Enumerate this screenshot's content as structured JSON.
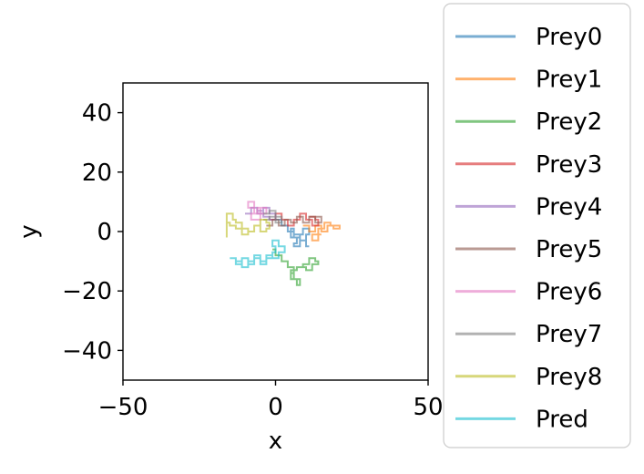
{
  "chart_data": {
    "type": "line",
    "title": "",
    "xlabel": "x",
    "ylabel": "y",
    "xlim": [
      -50,
      50
    ],
    "ylim": [
      -50,
      50
    ],
    "xticks": [
      -50,
      0,
      50
    ],
    "xtick_labels": [
      "−50",
      "0",
      "50"
    ],
    "yticks": [
      -40,
      -20,
      0,
      20,
      40
    ],
    "ytick_labels": [
      "−40",
      "−20",
      "0",
      "20",
      "40"
    ],
    "grid": false,
    "legend_position": "right",
    "series": [
      {
        "name": "Prey0",
        "color": "#1f77b4",
        "x": [
          0,
          2,
          2,
          4,
          4,
          6,
          6,
          8,
          8,
          9,
          9,
          11,
          11,
          10,
          10,
          8,
          8,
          6,
          6,
          5,
          5,
          7,
          7,
          6,
          6,
          8,
          8,
          10,
          10,
          11
        ],
        "y": [
          4,
          4,
          2,
          2,
          0,
          0,
          -2,
          -2,
          -1,
          -1,
          1,
          1,
          -1,
          -1,
          -3,
          -3,
          -1,
          -1,
          1,
          1,
          -2,
          -2,
          -4,
          -4,
          -5,
          -5,
          -3,
          -3,
          -5,
          -5
        ]
      },
      {
        "name": "Prey1",
        "color": "#ff7f0e",
        "x": [
          9,
          11,
          11,
          13,
          13,
          15,
          15,
          17,
          17,
          19,
          19,
          21,
          21,
          18,
          18,
          16,
          16,
          14,
          14,
          12,
          12,
          14,
          14,
          15
        ],
        "y": [
          2,
          2,
          0,
          0,
          2,
          2,
          0,
          0,
          2,
          2,
          1,
          1,
          2,
          2,
          3,
          3,
          1,
          1,
          -1,
          -1,
          -3,
          -3,
          -1,
          -1
        ]
      },
      {
        "name": "Prey2",
        "color": "#2ca02c",
        "x": [
          -1,
          0,
          0,
          2,
          2,
          4,
          4,
          6,
          6,
          5,
          5,
          7,
          7,
          8,
          8,
          6,
          6,
          5,
          5,
          7,
          7,
          9,
          9,
          11,
          11,
          13,
          13,
          14,
          14,
          12,
          12,
          10,
          10,
          9
        ],
        "y": [
          -6,
          -6,
          -8,
          -8,
          -10,
          -10,
          -12,
          -12,
          -14,
          -14,
          -16,
          -16,
          -18,
          -18,
          -16,
          -16,
          -14,
          -14,
          -13,
          -13,
          -12,
          -12,
          -11,
          -11,
          -9,
          -9,
          -10,
          -10,
          -11,
          -11,
          -13,
          -13,
          -12,
          -12
        ]
      },
      {
        "name": "Prey3",
        "color": "#d62728",
        "x": [
          -2,
          0,
          0,
          2,
          2,
          4,
          4,
          6,
          6,
          8,
          8,
          10,
          10,
          12,
          12,
          14,
          14,
          13,
          13,
          11
        ],
        "y": [
          4,
          4,
          6,
          6,
          4,
          4,
          2,
          2,
          4,
          4,
          6,
          6,
          4,
          4,
          2,
          2,
          4,
          4,
          5,
          5
        ]
      },
      {
        "name": "Prey4",
        "color": "#9467bd",
        "x": [
          -10,
          -8,
          -8,
          -6,
          -6,
          -4,
          -4,
          -2,
          -2,
          0,
          0,
          -2,
          -2,
          -4,
          -4,
          -6
        ],
        "y": [
          6,
          6,
          8,
          8,
          6,
          6,
          8,
          8,
          6,
          6,
          4,
          4,
          5,
          5,
          7,
          7
        ]
      },
      {
        "name": "Prey5",
        "color": "#8c564b",
        "x": [
          -3,
          -1,
          -1,
          1,
          1,
          3,
          3,
          5,
          5,
          7,
          7,
          9,
          9,
          11,
          11,
          13,
          13,
          15,
          15,
          13
        ],
        "y": [
          2,
          2,
          4,
          4,
          2,
          2,
          4,
          4,
          3,
          3,
          5,
          5,
          3,
          3,
          5,
          5,
          3,
          3,
          5,
          5
        ]
      },
      {
        "name": "Prey6",
        "color": "#e377c2",
        "x": [
          -7,
          -7,
          -9,
          -9,
          -7,
          -7,
          -5,
          -5,
          -3,
          -3,
          -5,
          -5,
          -8,
          -8,
          -6,
          -6,
          -4
        ],
        "y": [
          7,
          10,
          10,
          8,
          8,
          6,
          6,
          8,
          8,
          6,
          6,
          4,
          4,
          6,
          6,
          8,
          8
        ]
      },
      {
        "name": "Prey7",
        "color": "#7f7f7f",
        "x": [
          -4,
          -2,
          -2,
          0,
          0,
          2,
          2,
          0,
          0,
          -2,
          -2,
          -4
        ],
        "y": [
          6,
          6,
          7,
          7,
          5,
          5,
          3,
          3,
          5,
          5,
          4,
          4
        ]
      },
      {
        "name": "Prey8",
        "color": "#bcbd22",
        "x": [
          -16,
          -16,
          -14,
          -14,
          -13,
          -13,
          -11,
          -11,
          -9,
          -9,
          -7,
          -7,
          -5,
          -5,
          -3,
          -3,
          -2,
          -2,
          -3,
          -3,
          -5,
          -5,
          -7,
          -7,
          -9,
          -9,
          -11,
          -11,
          -13,
          -13,
          -15,
          -15,
          -16,
          -16
        ],
        "y": [
          -2,
          6,
          6,
          4,
          4,
          3,
          3,
          1,
          1,
          0,
          0,
          2,
          2,
          4,
          4,
          3,
          3,
          1,
          1,
          0,
          0,
          2,
          2,
          0,
          0,
          -1,
          -1,
          1,
          1,
          2,
          2,
          3,
          3,
          0
        ]
      },
      {
        "name": "Pred",
        "color": "#17becf",
        "x": [
          -15,
          -13,
          -13,
          -11,
          -11,
          -9,
          -9,
          -7,
          -7,
          -5,
          -5,
          -3,
          -3,
          -1,
          -1,
          0,
          0,
          -1,
          -1,
          1,
          1,
          3,
          3,
          1,
          1,
          -1,
          -1,
          -3,
          -3,
          -5,
          -5,
          -7,
          -7,
          -9,
          -9,
          -11,
          -11,
          -13
        ],
        "y": [
          -9,
          -9,
          -11,
          -11,
          -9,
          -9,
          -11,
          -11,
          -9,
          -9,
          -11,
          -11,
          -9,
          -9,
          -7,
          -7,
          -5,
          -5,
          -3,
          -3,
          -5,
          -5,
          -7,
          -7,
          -9,
          -9,
          -8,
          -8,
          -10,
          -10,
          -8,
          -8,
          -10,
          -10,
          -12,
          -12,
          -10,
          -10
        ]
      }
    ]
  }
}
